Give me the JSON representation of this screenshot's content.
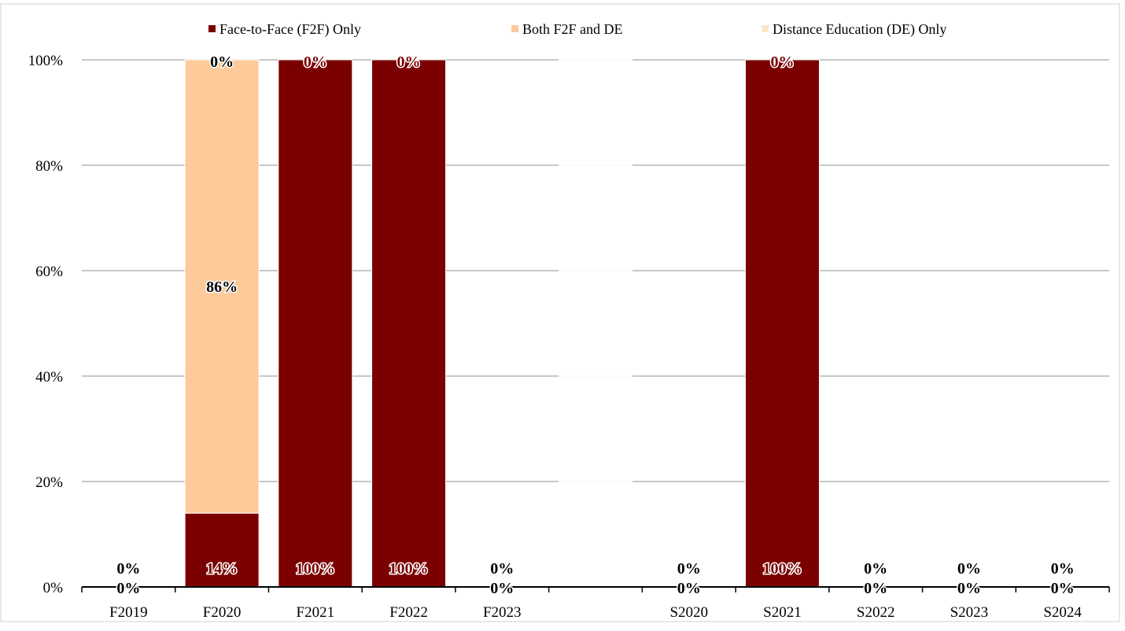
{
  "chart_data": {
    "type": "bar",
    "stacked": true,
    "categories": [
      "F2019",
      "F2020",
      "F2021",
      "F2022",
      "F2023",
      "",
      "S2020",
      "S2021",
      "S2022",
      "S2023",
      "S2024"
    ],
    "series": [
      {
        "name": "Face-to-Face (F2F) Only",
        "color": "#7b0000",
        "values": [
          0,
          14,
          100,
          100,
          0,
          null,
          0,
          100,
          0,
          0,
          0
        ]
      },
      {
        "name": "Both F2F and DE",
        "color": "#fdca9a",
        "values": [
          0,
          86,
          0,
          0,
          0,
          null,
          0,
          0,
          0,
          0,
          0
        ]
      },
      {
        "name": "Distance Education (DE) Only",
        "color": "#fde5c6",
        "values": [
          0,
          0,
          0,
          0,
          0,
          null,
          0,
          0,
          0,
          0,
          0
        ]
      }
    ],
    "data_labels": [
      [
        "0%",
        "14%",
        "100%",
        "100%",
        "0%",
        "",
        "0%",
        "100%",
        "0%",
        "0%",
        "0%"
      ],
      [
        "0%",
        "86%",
        "",
        "",
        "0%",
        "",
        "0%",
        "",
        "0%",
        "0%",
        "0%"
      ],
      [
        "",
        "0%",
        "0%",
        "0%",
        "",
        "",
        "",
        "0%",
        "",
        "",
        ""
      ]
    ],
    "y_ticks": [
      "0%",
      "20%",
      "40%",
      "60%",
      "80%",
      "100%"
    ],
    "ylim": [
      0,
      100
    ],
    "grid": true,
    "legend_position": "top"
  }
}
